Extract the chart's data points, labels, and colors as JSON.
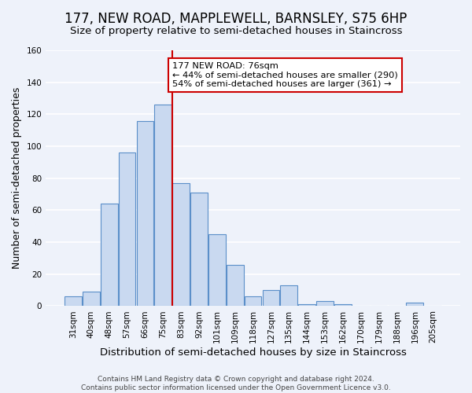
{
  "title": "177, NEW ROAD, MAPPLEWELL, BARNSLEY, S75 6HP",
  "subtitle": "Size of property relative to semi-detached houses in Staincross",
  "xlabel": "Distribution of semi-detached houses by size in Staincross",
  "ylabel": "Number of semi-detached properties",
  "bar_labels": [
    "31sqm",
    "40sqm",
    "48sqm",
    "57sqm",
    "66sqm",
    "75sqm",
    "83sqm",
    "92sqm",
    "101sqm",
    "109sqm",
    "118sqm",
    "127sqm",
    "135sqm",
    "144sqm",
    "153sqm",
    "162sqm",
    "170sqm",
    "179sqm",
    "188sqm",
    "196sqm",
    "205sqm"
  ],
  "bar_values": [
    6,
    9,
    64,
    96,
    116,
    126,
    77,
    71,
    45,
    26,
    6,
    10,
    13,
    1,
    3,
    1,
    0,
    0,
    0,
    2,
    0
  ],
  "bar_color": "#c9d9f0",
  "bar_edge_color": "#5b8fc9",
  "property_line_x": 5.5,
  "property_line_color": "#cc0000",
  "annotation_title": "177 NEW ROAD: 76sqm",
  "annotation_line1": "← 44% of semi-detached houses are smaller (290)",
  "annotation_line2": "54% of semi-detached houses are larger (361) →",
  "annotation_box_color": "#ffffff",
  "annotation_box_edge_color": "#cc0000",
  "ylim": [
    0,
    160
  ],
  "yticks": [
    0,
    20,
    40,
    60,
    80,
    100,
    120,
    140,
    160
  ],
  "footer1": "Contains HM Land Registry data © Crown copyright and database right 2024.",
  "footer2": "Contains public sector information licensed under the Open Government Licence v3.0.",
  "background_color": "#eef2fa",
  "grid_color": "#ffffff",
  "title_fontsize": 12,
  "axis_label_fontsize": 9,
  "tick_fontsize": 7.5,
  "footer_fontsize": 6.5
}
